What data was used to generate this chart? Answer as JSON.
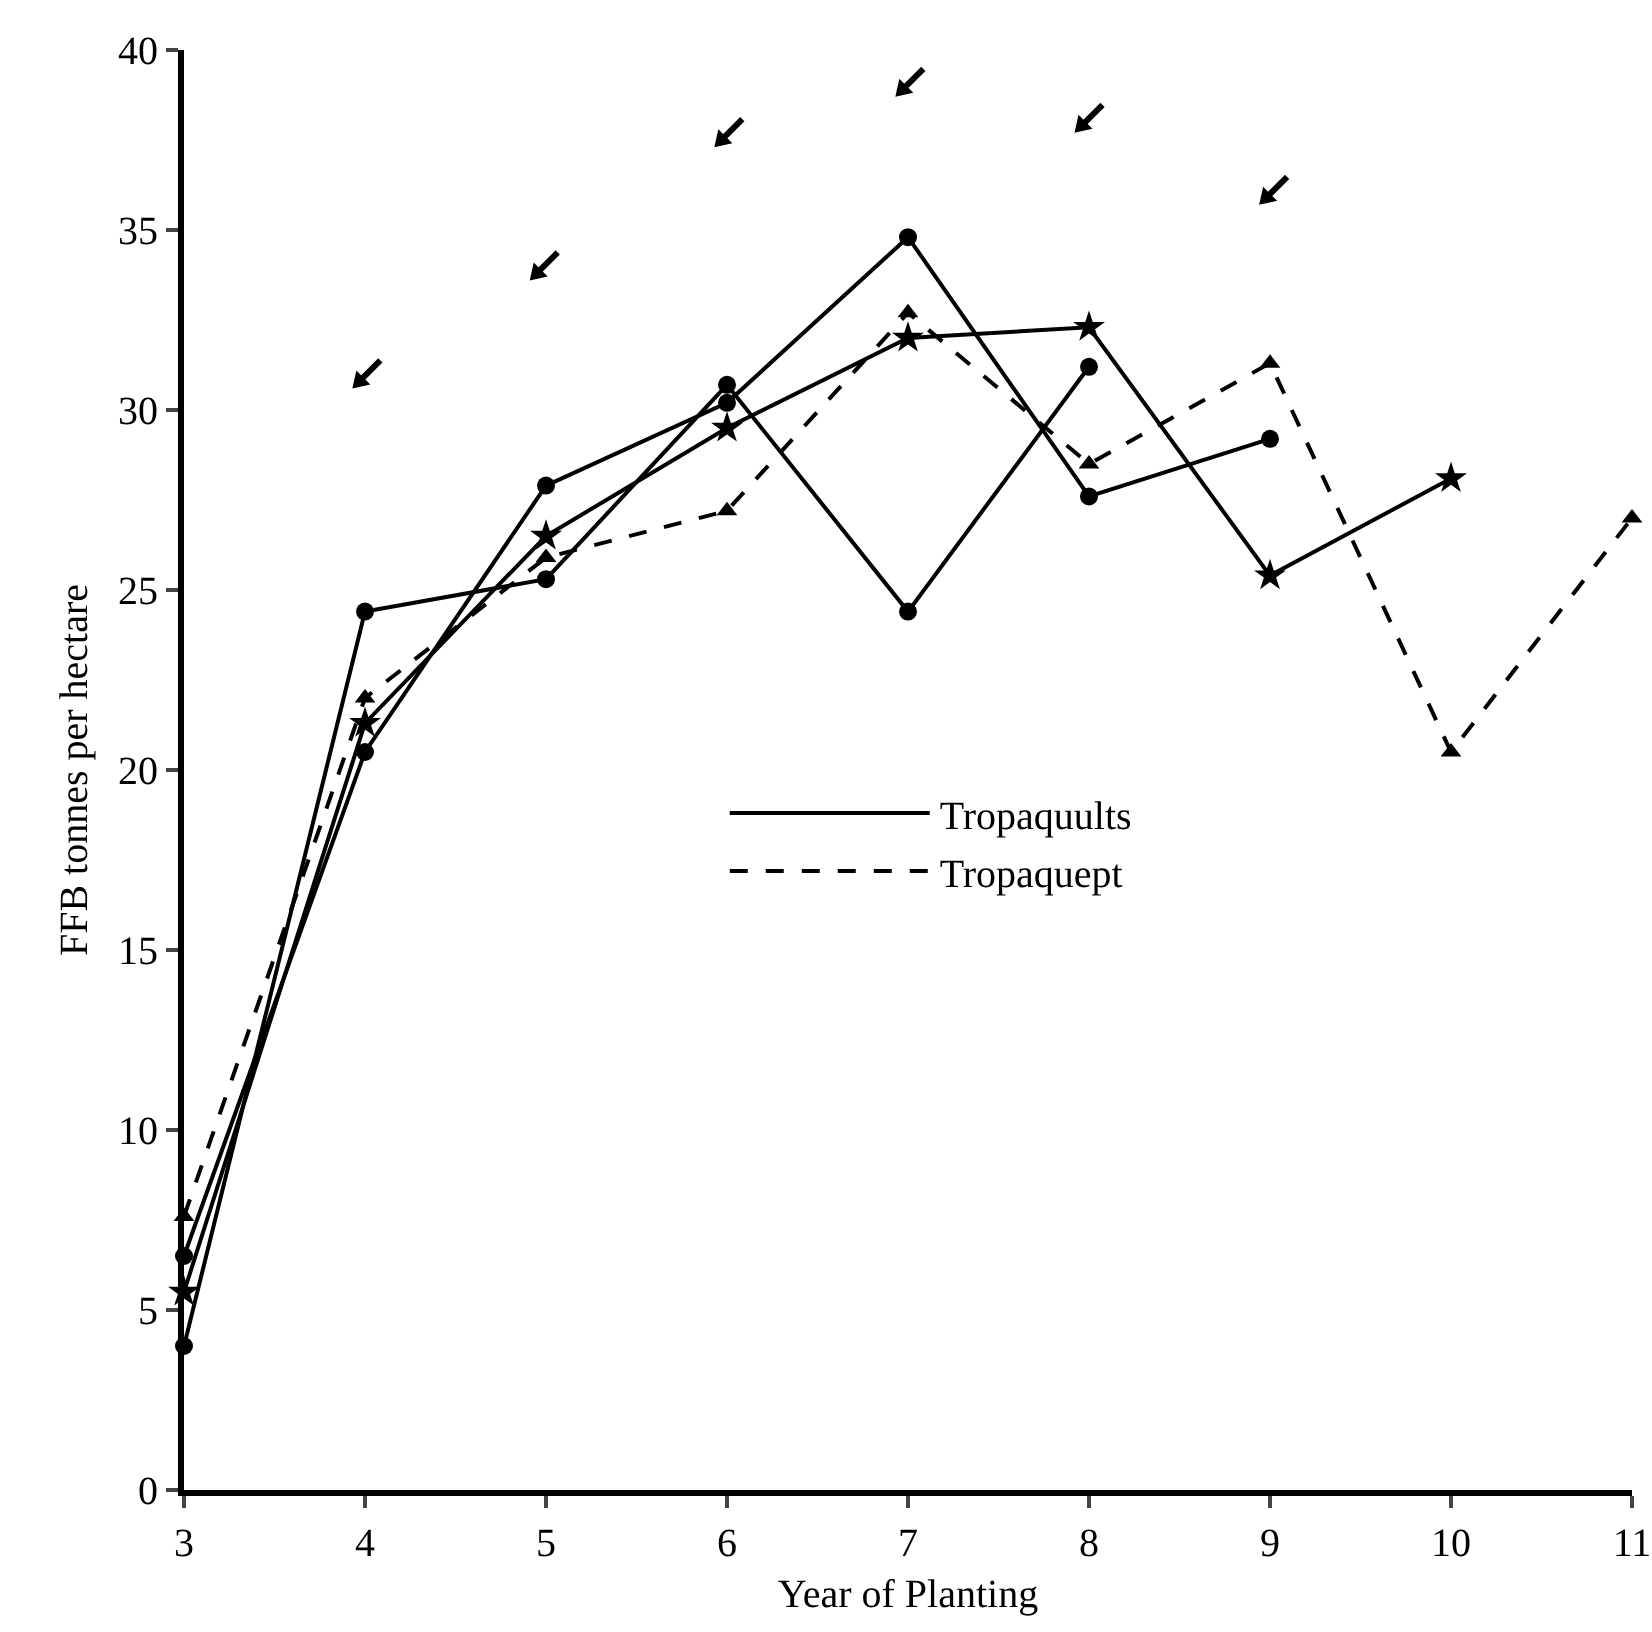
{
  "chart_data": {
    "type": "line",
    "xlabel": "Year of Planting",
    "ylabel": "FFB tonnes per hectare",
    "x": [
      3,
      4,
      5,
      6,
      7,
      8,
      9,
      10,
      11
    ],
    "series": [
      {
        "name": "Tropaquults",
        "color": "#000000",
        "marker": "circle",
        "line_style": "solid",
        "values": [
          6.5,
          20.5,
          27.9,
          30.2,
          34.8,
          27.6,
          29.2,
          null,
          null
        ]
      },
      {
        "color": "#000000",
        "marker": "circle",
        "line_style": "solid",
        "values": [
          4.0,
          24.4,
          25.3,
          30.7,
          24.4,
          31.2,
          null,
          null,
          null
        ]
      },
      {
        "color": "#000000",
        "marker": "star",
        "line_style": "solid",
        "values": [
          5.5,
          21.3,
          26.5,
          29.5,
          32.0,
          32.3,
          25.4,
          28.1,
          null
        ]
      },
      {
        "name": "Tropaquept",
        "color": "#000000",
        "marker": "triangle",
        "line_style": "dashed",
        "values": [
          7.6,
          22.0,
          25.9,
          27.2,
          32.7,
          28.5,
          31.3,
          20.5,
          27.0
        ]
      }
    ],
    "xlim": [
      3,
      11
    ],
    "xticks": [
      3,
      4,
      5,
      6,
      7,
      8,
      9,
      10,
      11
    ],
    "ylim": [
      0,
      40
    ],
    "yticks": [
      0,
      5,
      10,
      15,
      20,
      25,
      30,
      35,
      40
    ],
    "grid": false,
    "legend": "center"
  }
}
